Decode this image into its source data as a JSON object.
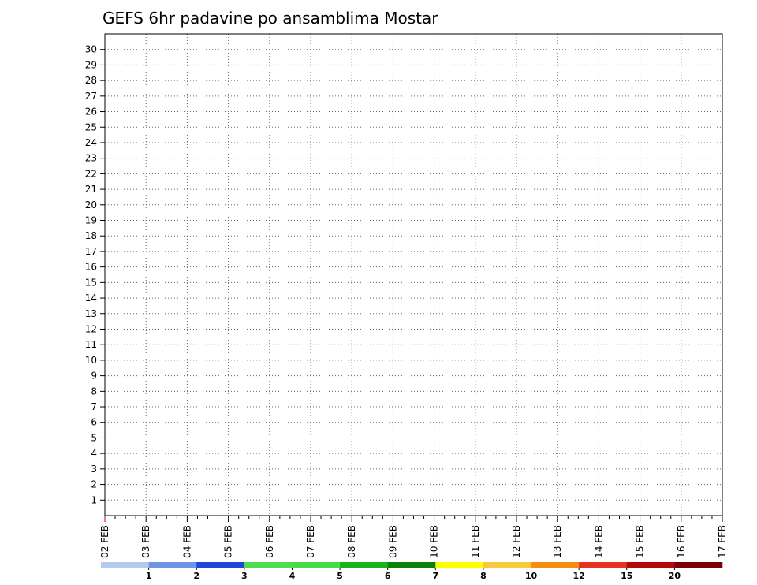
{
  "chart_data": {
    "type": "heatmap",
    "title": "GEFS 6hr padavine po ansamblima Mostar",
    "x_tick_labels": [
      "02 FEB",
      "03 FEB",
      "04 FEB",
      "05 FEB",
      "06 FEB",
      "07 FEB",
      "08 FEB",
      "09 FEB",
      "10 FEB",
      "11 FEB",
      "12 FEB",
      "13 FEB",
      "14 FEB",
      "15 FEB",
      "16 FEB",
      "17 FEB"
    ],
    "y_tick_labels": [
      "1",
      "2",
      "3",
      "4",
      "5",
      "6",
      "7",
      "8",
      "9",
      "10",
      "11",
      "12",
      "13",
      "14",
      "15",
      "16",
      "17",
      "18",
      "19",
      "20",
      "21",
      "22",
      "23",
      "24",
      "25",
      "26",
      "27",
      "28",
      "29",
      "30"
    ],
    "members": 31,
    "steps_per_day": 4,
    "time_steps": 61,
    "grid": true,
    "legend": {
      "position": "bottom",
      "thresholds": [
        "1",
        "2",
        "3",
        "4",
        "5",
        "6",
        "7",
        "8",
        "10",
        "12",
        "15",
        "20"
      ],
      "colors": [
        "#b4c8f0",
        "#6e96e6",
        "#1e46dc",
        "#50dc50",
        "#46dc46",
        "#19b419",
        "#0a820a",
        "#ffff00",
        "#fac83c",
        "#f58c14",
        "#e6321e",
        "#b40a0a",
        "#780000"
      ]
    },
    "precip_class_matrix": [
      "0000000000000000000000000000000000000000000000000000000000000",
      "0000000000000000000000000000000000000000000000000000000000000",
      "0000000000000000000000000000000000000000000000000000000000000",
      "0000000000000000000000000000000000000000000000000000000000000",
      "0000000000000000000000000000000000000000000000000000000000000",
      "0000000000000000000000000000000000000000000000000000000000000",
      "0000000000000000000000000000000000000000000000000000000000000",
      "0000000000000000000000000000000000000000000000000000000000000",
      "0000000000000000000000000000000000000000000000000000000000000",
      "0000000000000000000000000000000000000000000000000000000000000",
      "0000000000000000000000000000000000000000000000000000000000000",
      "0000000000000000000000000000000000000000000000000000000000000",
      "0000000000000000000000000000000000000000000000000000000000000",
      "0000000000000000000000000000000000000000000000000000000000000",
      "0000000000000000000000000000000000000000000000000000000000000",
      "0000000000000000000000000000000000000000000000000000000000000",
      "0000000000000000000000000000000000000000000000000000000000000",
      "0000000000000000000000000000000000000000000000000000000000000",
      "0000000000000000000000000000000000000000000000000000000000000",
      "0000000000000000000000000000000000000000000000000000000000000",
      "0000000000000000000000000000000000000000000000000000000000000",
      "0000000000000000000000000000000000000000000000000000000000000",
      "0000000000000000000000000000000000000000000000000000000000000",
      "0000000000000000000000000000000000000000000000000000000000000",
      "0000000000000000000000000000000000000000000000000000000000000",
      "0000000000000000000000000000000000000000000000000000000000000",
      "0000000000000000000000000000000000000000000000000000000000000",
      "0000000000000000000000000000000000000000000000000000000000000",
      "0000000000000000000000000000000000000000000000000000000000000",
      "0000000000000000000000000000000000000000000000000000000000000",
      "0000000000000000000000000000000000000000000000000000000000000"
    ]
  }
}
